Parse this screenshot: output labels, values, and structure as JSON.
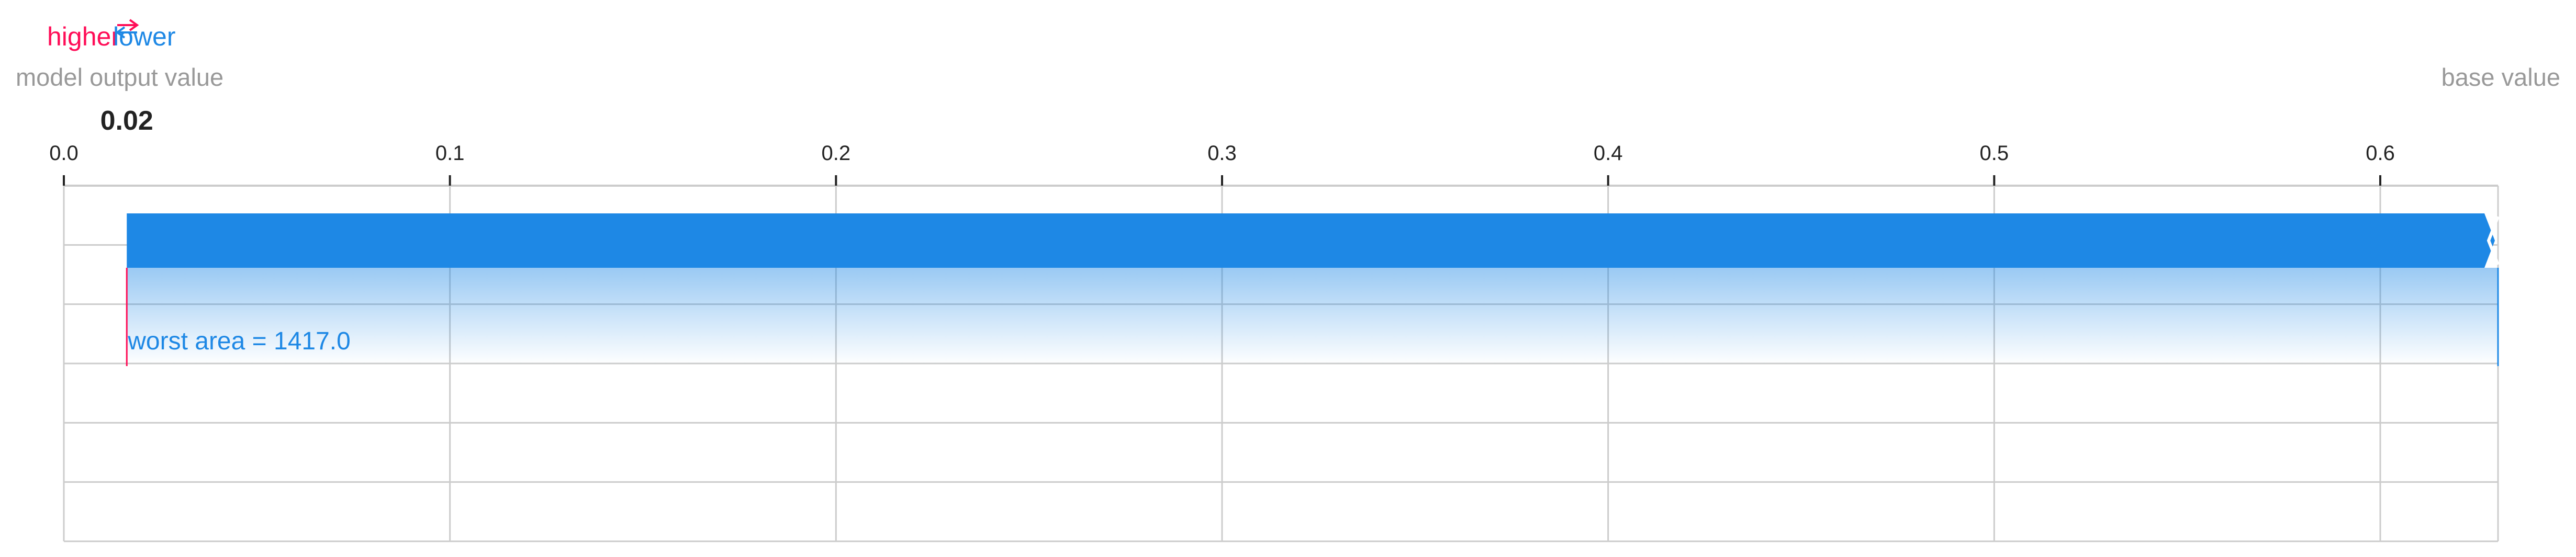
{
  "legend": {
    "higher": "higher",
    "lower": "lower",
    "higher_color": "#ff0d57",
    "lower_color": "#1e88e5"
  },
  "labels": {
    "output_caption": "model output value",
    "base_caption": "base value",
    "output_value_text": "0.02"
  },
  "chart_data": {
    "type": "bar",
    "x_ticks": [
      0.0,
      0.1,
      0.2,
      0.3,
      0.4,
      0.5,
      0.6
    ],
    "x_tick_labels": [
      "0.0",
      "0.1",
      "0.2",
      "0.3",
      "0.4",
      "0.5",
      "0.6"
    ],
    "xlim": [
      0.0,
      0.6305
    ],
    "grid": true,
    "model_output_value": 0.0163,
    "base_value": 0.6305,
    "features": [
      {
        "label": "worst area = 1417.0",
        "start": 0.6305,
        "end": 0.0163,
        "effect": "lower",
        "color": "#1e88e5"
      }
    ]
  }
}
